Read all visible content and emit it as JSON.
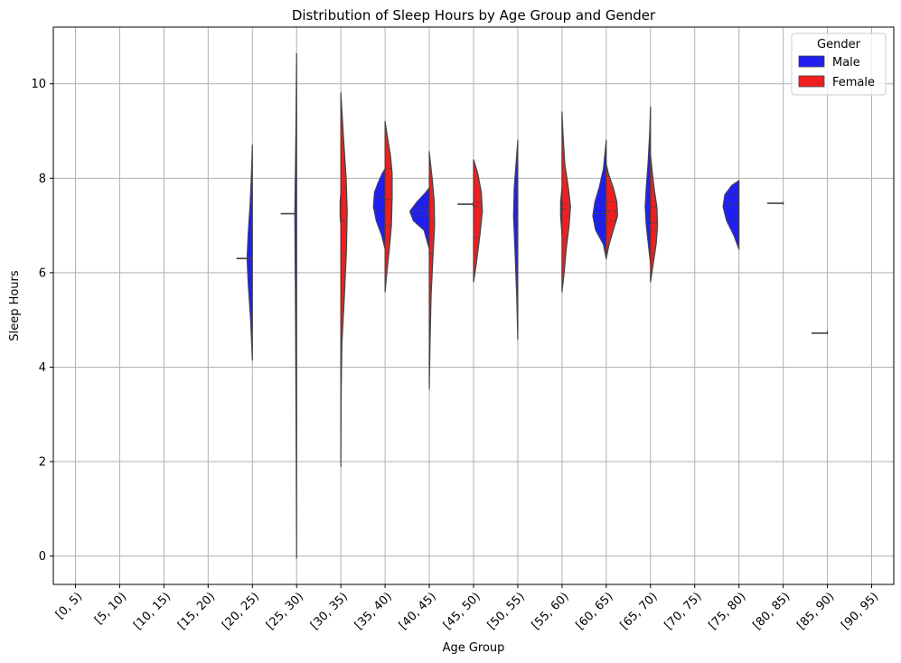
{
  "chart_data": {
    "type": "violin",
    "title": "Distribution of Sleep Hours by Age Group and Gender",
    "xlabel": "Age Group",
    "ylabel": "Sleep Hours",
    "ylim": [
      -0.6,
      11.2
    ],
    "yticks": [
      0,
      2,
      4,
      6,
      8,
      10
    ],
    "grid": true,
    "legend_position": "top-right",
    "legend_title": "Gender",
    "categories": [
      "[0, 5)",
      "[5, 10)",
      "[10, 15)",
      "[15, 20)",
      "[20, 25)",
      "[25, 30)",
      "[30, 35)",
      "[35, 40)",
      "[40, 45)",
      "[45, 50)",
      "[50, 55)",
      "[55, 60)",
      "[60, 65)",
      "[65, 70)",
      "[70, 75)",
      "[75, 80)",
      "[80, 85)",
      "[85, 90)",
      "[90, 95)"
    ],
    "series": [
      {
        "name": "Male",
        "color": "#1f1fef",
        "violins": [
          {
            "category": "[20, 25)",
            "min": 4.15,
            "max": 8.7,
            "profile": [
              [
                4.15,
                0
              ],
              [
                5.0,
                0.05
              ],
              [
                5.8,
                0.12
              ],
              [
                6.3,
                0.15
              ],
              [
                6.8,
                0.12
              ],
              [
                7.5,
                0.06
              ],
              [
                8.2,
                0.02
              ],
              [
                8.7,
                0
              ]
            ],
            "median": 6.3,
            "line": 6.3
          },
          {
            "category": "[25, 30)",
            "min": -0.05,
            "max": 10.65,
            "profile": [
              [
                -0.05,
                0
              ],
              [
                2,
                0.01
              ],
              [
                5,
                0.03
              ],
              [
                7.25,
                0.05
              ],
              [
                9,
                0.02
              ],
              [
                10.65,
                0
              ]
            ],
            "line": 7.25
          },
          {
            "category": "[30, 35)",
            "min": 7.0,
            "max": 7.7,
            "profile": [
              [
                7.0,
                0
              ],
              [
                7.2,
                0.02
              ],
              [
                7.5,
                0.02
              ],
              [
                7.7,
                0
              ]
            ]
          },
          {
            "category": "[35, 40)",
            "min": 6.5,
            "max": 8.2,
            "profile": [
              [
                6.5,
                0
              ],
              [
                6.8,
                0.1
              ],
              [
                7.1,
                0.25
              ],
              [
                7.4,
                0.33
              ],
              [
                7.7,
                0.3
              ],
              [
                7.9,
                0.2
              ],
              [
                8.1,
                0.08
              ],
              [
                8.2,
                0
              ]
            ],
            "quartiles": [
              6.95,
              7.3,
              7.6
            ]
          },
          {
            "category": "[40, 45)",
            "min": 6.5,
            "max": 7.8,
            "profile": [
              [
                6.5,
                0
              ],
              [
                6.9,
                0.15
              ],
              [
                7.1,
                0.45
              ],
              [
                7.3,
                0.55
              ],
              [
                7.5,
                0.35
              ],
              [
                7.7,
                0.1
              ],
              [
                7.8,
                0
              ]
            ],
            "quartiles": [
              7.2,
              7.3,
              7.4
            ]
          },
          {
            "category": "[45, 50)",
            "min": 7.4,
            "max": 7.5,
            "profile": [
              [
                7.4,
                0
              ],
              [
                7.45,
                0.02
              ],
              [
                7.5,
                0
              ]
            ],
            "line": 7.45
          },
          {
            "category": "[50, 55)",
            "min": 4.6,
            "max": 8.8,
            "profile": [
              [
                4.6,
                0
              ],
              [
                5.5,
                0.03
              ],
              [
                6.5,
                0.08
              ],
              [
                7.2,
                0.12
              ],
              [
                7.8,
                0.1
              ],
              [
                8.3,
                0.05
              ],
              [
                8.8,
                0
              ]
            ],
            "median": 7.15
          },
          {
            "category": "[55, 60)",
            "min": 6.8,
            "max": 7.8,
            "profile": [
              [
                6.8,
                0
              ],
              [
                7.2,
                0.04
              ],
              [
                7.5,
                0.04
              ],
              [
                7.8,
                0
              ]
            ]
          },
          {
            "category": "[60, 65)",
            "min": 6.3,
            "max": 8.8,
            "profile": [
              [
                6.3,
                0
              ],
              [
                6.6,
                0.08
              ],
              [
                6.9,
                0.3
              ],
              [
                7.2,
                0.38
              ],
              [
                7.5,
                0.32
              ],
              [
                7.8,
                0.2
              ],
              [
                8.2,
                0.08
              ],
              [
                8.8,
                0
              ]
            ],
            "quartiles": [
              7.05,
              7.25,
              7.45
            ]
          },
          {
            "category": "[65, 70)",
            "min": 6.2,
            "max": 9.5,
            "profile": [
              [
                6.2,
                0
              ],
              [
                6.6,
                0.06
              ],
              [
                7.0,
                0.12
              ],
              [
                7.4,
                0.15
              ],
              [
                7.8,
                0.12
              ],
              [
                8.3,
                0.07
              ],
              [
                9.0,
                0.02
              ],
              [
                9.5,
                0
              ]
            ],
            "quartiles": [
              6.85,
              7.2,
              7.5
            ]
          },
          {
            "category": "[75, 80)",
            "min": 6.5,
            "max": 7.95,
            "profile": [
              [
                6.5,
                0
              ],
              [
                6.8,
                0.15
              ],
              [
                7.1,
                0.35
              ],
              [
                7.4,
                0.45
              ],
              [
                7.65,
                0.4
              ],
              [
                7.85,
                0.2
              ],
              [
                7.95,
                0
              ]
            ],
            "quartiles": [
              7.1,
              7.45,
              7.65
            ]
          },
          {
            "category": "[80, 85)",
            "min": 7.45,
            "max": 7.5,
            "profile": [
              [
                7.45,
                0
              ],
              [
                7.5,
                0
              ]
            ],
            "line": 7.47
          },
          {
            "category": "[85, 90)",
            "min": 4.7,
            "max": 4.75,
            "profile": [
              [
                4.7,
                0
              ],
              [
                4.75,
                0
              ]
            ],
            "line": 4.72
          }
        ]
      },
      {
        "name": "Female",
        "color": "#ef1f1f",
        "violins": [
          {
            "category": "[30, 35)",
            "min": 1.9,
            "max": 9.8,
            "profile": [
              [
                1.9,
                0
              ],
              [
                3.5,
                0.01
              ],
              [
                4.5,
                0.03
              ],
              [
                5.5,
                0.1
              ],
              [
                6.5,
                0.16
              ],
              [
                7.3,
                0.18
              ],
              [
                8.0,
                0.15
              ],
              [
                8.8,
                0.08
              ],
              [
                9.8,
                0
              ]
            ],
            "quartiles": [
              6.4,
              7.1,
              7.8
            ]
          },
          {
            "category": "[35, 40)",
            "min": 5.6,
            "max": 9.2,
            "profile": [
              [
                5.6,
                0
              ],
              [
                6.0,
                0.05
              ],
              [
                6.5,
                0.12
              ],
              [
                7.0,
                0.18
              ],
              [
                7.6,
                0.2
              ],
              [
                8.1,
                0.2
              ],
              [
                8.5,
                0.15
              ],
              [
                8.9,
                0.06
              ],
              [
                9.2,
                0
              ]
            ],
            "quartiles": [
              7.0,
              7.55,
              8.2
            ]
          },
          {
            "category": "[40, 45)",
            "min": 3.55,
            "max": 8.55,
            "profile": [
              [
                3.55,
                0
              ],
              [
                4.5,
                0.02
              ],
              [
                5.5,
                0.05
              ],
              [
                6.3,
                0.1
              ],
              [
                7.0,
                0.15
              ],
              [
                7.5,
                0.14
              ],
              [
                8.0,
                0.08
              ],
              [
                8.55,
                0
              ]
            ],
            "quartiles": [
              5.7,
              6.4,
              7.1
            ]
          },
          {
            "category": "[45, 50)",
            "min": 5.8,
            "max": 8.4,
            "profile": [
              [
                5.8,
                0
              ],
              [
                6.2,
                0.08
              ],
              [
                6.8,
                0.18
              ],
              [
                7.3,
                0.25
              ],
              [
                7.7,
                0.22
              ],
              [
                8.1,
                0.12
              ],
              [
                8.4,
                0
              ]
            ],
            "quartiles": [
              6.75,
              7.4,
              7.5
            ]
          },
          {
            "category": "[55, 60)",
            "min": 5.6,
            "max": 9.4,
            "profile": [
              [
                5.6,
                0
              ],
              [
                6.0,
                0.06
              ],
              [
                6.5,
                0.12
              ],
              [
                7.0,
                0.2
              ],
              [
                7.4,
                0.24
              ],
              [
                7.8,
                0.18
              ],
              [
                8.3,
                0.08
              ],
              [
                8.9,
                0.03
              ],
              [
                9.4,
                0
              ]
            ],
            "quartiles": [
              6.7,
              7.35,
              7.45
            ]
          },
          {
            "category": "[60, 65)",
            "min": 6.3,
            "max": 8.3,
            "profile": [
              [
                6.3,
                0
              ],
              [
                6.6,
                0.08
              ],
              [
                6.9,
                0.2
              ],
              [
                7.2,
                0.32
              ],
              [
                7.5,
                0.3
              ],
              [
                7.8,
                0.2
              ],
              [
                8.1,
                0.06
              ],
              [
                8.3,
                0
              ]
            ],
            "quartiles": [
              7.1,
              7.3,
              7.5
            ]
          },
          {
            "category": "[65, 70)",
            "min": 5.8,
            "max": 8.5,
            "profile": [
              [
                5.8,
                0
              ],
              [
                6.2,
                0.08
              ],
              [
                6.6,
                0.16
              ],
              [
                7.0,
                0.2
              ],
              [
                7.4,
                0.18
              ],
              [
                7.8,
                0.1
              ],
              [
                8.2,
                0.04
              ],
              [
                8.5,
                0
              ]
            ],
            "quartiles": [
              6.9,
              7.05,
              7.4
            ]
          }
        ]
      }
    ]
  }
}
